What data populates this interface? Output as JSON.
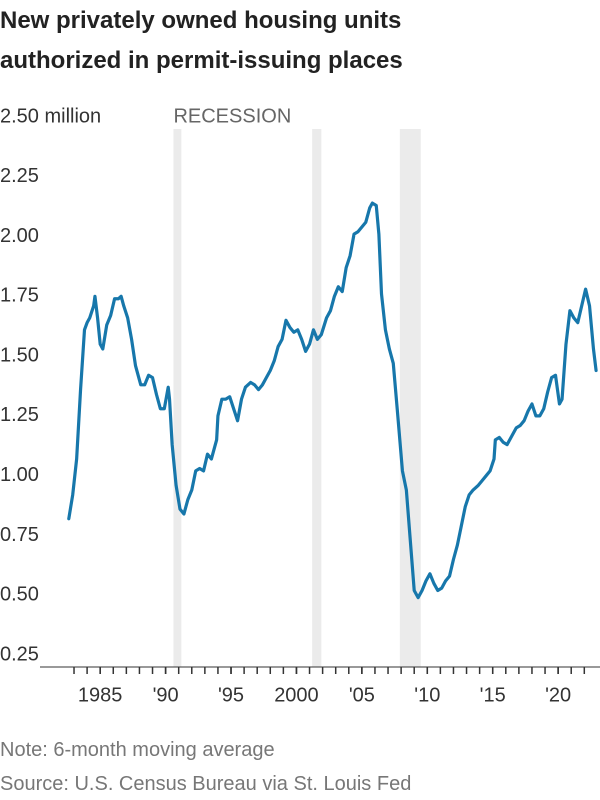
{
  "chart_data": {
    "type": "line",
    "title": [
      "New privately owned housing units",
      "authorized in permit-issuing places"
    ],
    "annotation": "RECESSION",
    "notes": [
      "Note: 6-month moving average",
      "Source: U.S. Census Bureau via St. Louis Fed"
    ],
    "color": "#1777ab",
    "recession_color": "#ebebeb",
    "recessions": [
      [
        1990.6,
        1991.2
      ],
      [
        2001.2,
        2001.9
      ],
      [
        2007.9,
        2009.5
      ]
    ],
    "xlim": [
      1980.4,
      2023.2
    ],
    "xticks": [
      {
        "value": 1985,
        "label": "1985"
      },
      {
        "value": 1990,
        "label": "'90"
      },
      {
        "value": 1995,
        "label": "'95"
      },
      2000,
      {
        "value": 2005,
        "label": "'05"
      },
      {
        "value": 2010,
        "label": "'10"
      },
      {
        "value": 2015,
        "label": "'15"
      },
      {
        "value": 2020,
        "label": "'20"
      }
    ],
    "minor_xticks": [
      1983,
      1984,
      1985,
      1986,
      1987,
      1988,
      1989,
      1990,
      1991,
      1992,
      1993,
      1994,
      1995,
      1996,
      1997,
      1998,
      1999,
      2000,
      2001,
      2002,
      2003,
      2004,
      2005,
      2006,
      2007,
      2008,
      2009,
      2010,
      2011,
      2012,
      2013,
      2014,
      2015,
      2016,
      2017,
      2018,
      2019,
      2020,
      2021,
      2022
    ],
    "ylim": [
      0.2,
      2.5
    ],
    "yticks": [
      {
        "value": 2.5,
        "label": "2.50 million"
      },
      2.25,
      {
        "value": 2.0,
        "label": "2.00"
      },
      1.75,
      {
        "value": 1.5,
        "label": "1.50"
      },
      1.25,
      {
        "value": 1.0,
        "label": "1.00"
      },
      0.75,
      {
        "value": 0.5,
        "label": "0.50"
      },
      0.25
    ],
    "grid": false,
    "x": [
      1982.6,
      1982.9,
      1983.2,
      1983.5,
      1983.8,
      1984.0,
      1984.2,
      1984.5,
      1984.6,
      1984.8,
      1985.0,
      1985.2,
      1985.5,
      1985.8,
      1986.1,
      1986.4,
      1986.6,
      1986.8,
      1987.1,
      1987.4,
      1987.7,
      1988.1,
      1988.4,
      1988.7,
      1989.0,
      1989.3,
      1989.6,
      1989.9,
      1990.2,
      1990.3,
      1990.5,
      1990.8,
      1991.1,
      1991.4,
      1991.7,
      1992.0,
      1992.3,
      1992.6,
      1992.9,
      1993.2,
      1993.5,
      1993.9,
      1994.0,
      1994.3,
      1994.6,
      1994.9,
      1995.2,
      1995.5,
      1995.8,
      1996.1,
      1996.5,
      1996.8,
      1997.1,
      1997.4,
      1997.7,
      1998.0,
      1998.3,
      1998.6,
      1998.9,
      1999.2,
      1999.5,
      1999.8,
      2000.1,
      2000.4,
      2000.7,
      2001.0,
      2001.3,
      2001.6,
      2001.9,
      2002.3,
      2002.6,
      2002.9,
      2003.2,
      2003.5,
      2003.8,
      2004.1,
      2004.4,
      2004.7,
      2005.0,
      2005.3,
      2005.6,
      2005.8,
      2006.1,
      2006.3,
      2006.5,
      2006.8,
      2007.1,
      2007.4,
      2007.7,
      2008.1,
      2008.4,
      2008.7,
      2009.0,
      2009.3,
      2009.6,
      2009.9,
      2010.2,
      2010.5,
      2010.8,
      2011.1,
      2011.4,
      2011.7,
      2012.0,
      2012.3,
      2012.6,
      2012.9,
      2013.2,
      2013.5,
      2013.9,
      2014.2,
      2014.5,
      2014.8,
      2015.1,
      2015.2,
      2015.5,
      2015.8,
      2016.1,
      2016.5,
      2016.8,
      2017.1,
      2017.4,
      2017.7,
      2018.0,
      2018.3,
      2018.6,
      2018.9,
      2019.2,
      2019.5,
      2019.8,
      2020.1,
      2020.3,
      2020.6,
      2020.9,
      2021.2,
      2021.5,
      2021.8,
      2022.1,
      2022.4,
      2022.7,
      2022.9
    ],
    "values": [
      0.82,
      0.92,
      1.07,
      1.36,
      1.61,
      1.64,
      1.66,
      1.71,
      1.75,
      1.66,
      1.55,
      1.53,
      1.63,
      1.67,
      1.74,
      1.74,
      1.75,
      1.71,
      1.66,
      1.57,
      1.46,
      1.38,
      1.38,
      1.42,
      1.41,
      1.34,
      1.28,
      1.28,
      1.37,
      1.32,
      1.13,
      0.96,
      0.86,
      0.84,
      0.9,
      0.94,
      1.02,
      1.03,
      1.02,
      1.09,
      1.07,
      1.15,
      1.25,
      1.32,
      1.32,
      1.33,
      1.28,
      1.23,
      1.32,
      1.37,
      1.39,
      1.38,
      1.36,
      1.38,
      1.41,
      1.44,
      1.48,
      1.54,
      1.57,
      1.65,
      1.62,
      1.6,
      1.61,
      1.57,
      1.52,
      1.55,
      1.61,
      1.57,
      1.59,
      1.66,
      1.69,
      1.75,
      1.79,
      1.77,
      1.87,
      1.92,
      2.01,
      2.02,
      2.04,
      2.06,
      2.12,
      2.14,
      2.13,
      2.01,
      1.76,
      1.61,
      1.53,
      1.47,
      1.28,
      1.02,
      0.94,
      0.73,
      0.52,
      0.49,
      0.52,
      0.56,
      0.59,
      0.55,
      0.52,
      0.53,
      0.56,
      0.58,
      0.65,
      0.71,
      0.79,
      0.87,
      0.92,
      0.94,
      0.96,
      0.98,
      1.0,
      1.02,
      1.07,
      1.15,
      1.16,
      1.14,
      1.13,
      1.17,
      1.2,
      1.21,
      1.23,
      1.27,
      1.3,
      1.25,
      1.25,
      1.28,
      1.35,
      1.41,
      1.42,
      1.3,
      1.32,
      1.55,
      1.69,
      1.66,
      1.64,
      1.71,
      1.78,
      1.71,
      1.53,
      1.44
    ]
  }
}
